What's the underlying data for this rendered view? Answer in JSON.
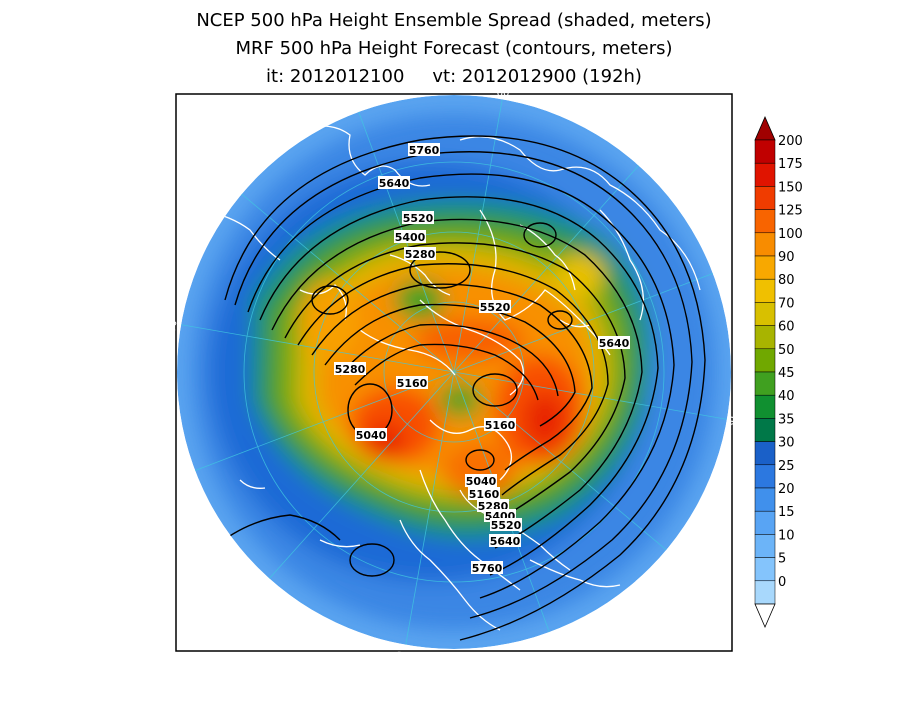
{
  "title": {
    "line1": "NCEP 500 hPa Height Ensemble Spread (shaded, meters)",
    "line2": "MRF 500 hPa Height Forecast (contours, meters)",
    "init_time": "it: 2012012100",
    "valid_time": "vt: 2012012900 (192h)"
  },
  "map": {
    "projection": "north-polar-stereographic",
    "longitude_labels": [
      "60",
      "30",
      "0",
      "30",
      "60",
      "90",
      "120",
      "150",
      "180",
      "150",
      "120",
      "90"
    ],
    "contour_labels": [
      "5760",
      "5640",
      "5520",
      "5400",
      "5280",
      "5520",
      "5640",
      "5280",
      "5160",
      "5040",
      "5160",
      "5040",
      "5160",
      "5280",
      "5400",
      "5520",
      "5640",
      "5760"
    ],
    "colors": {
      "coast": "#ffffff",
      "contour": "#000000",
      "grid": "#40c8e0"
    }
  },
  "colorbar": {
    "ticks": [
      "200",
      "175",
      "150",
      "125",
      "100",
      "90",
      "80",
      "70",
      "60",
      "50",
      "45",
      "40",
      "35",
      "30",
      "25",
      "20",
      "15",
      "10",
      "5",
      "0"
    ],
    "colors": [
      "#c00000",
      "#e01400",
      "#f03c00",
      "#f86400",
      "#f88c00",
      "#f8a800",
      "#f0c000",
      "#d8c000",
      "#a8b400",
      "#70a800",
      "#40a020",
      "#109030",
      "#007848",
      "#1a60c8",
      "#2c78e0",
      "#4090ec",
      "#58a4f4",
      "#6cb4f8",
      "#84c4fc",
      "#a8d8fc"
    ],
    "top_color": "#a00000",
    "bottom_color": "#ffffff"
  }
}
